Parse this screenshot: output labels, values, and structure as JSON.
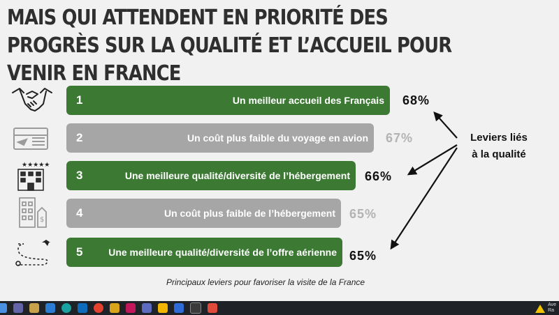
{
  "title": "MAIS QUI ATTENDENT EN PRIORITÉ DES PROGRÈS SUR LA QUALITÉ ET L’ACCUEIL POUR VENIR EN FRANCE",
  "levers": [
    {
      "num": "1",
      "label": "Un meilleur accueil des Français",
      "pct": "68%",
      "icon": "handshake-icon",
      "color": "#3c7a34"
    },
    {
      "num": "2",
      "label": "Un coût plus faible du voyage en avion",
      "pct": "67%",
      "icon": "plane-ticket-icon",
      "color": "#a6a6a6"
    },
    {
      "num": "3",
      "label": "Une meilleure qualité/diversité de l’hébergement",
      "pct": "66%",
      "icon": "hotel-stars-icon",
      "color": "#3c7a34"
    },
    {
      "num": "4",
      "label": "Un coût plus faible de l’hébergement",
      "pct": "65%",
      "icon": "building-price-icon",
      "color": "#a6a6a6"
    },
    {
      "num": "5",
      "label": "Une meilleure qualité/diversité de l’offre aérienne",
      "pct": "65%",
      "icon": "flight-route-icon",
      "color": "#3c7a34"
    }
  ],
  "callout": {
    "line1": "Leviers liés",
    "line2": "à la qualité"
  },
  "caption": "Principaux leviers pour favoriser la visite de la France",
  "taskbar": {
    "notification_line1": "Ave",
    "notification_line2": "Ra"
  }
}
